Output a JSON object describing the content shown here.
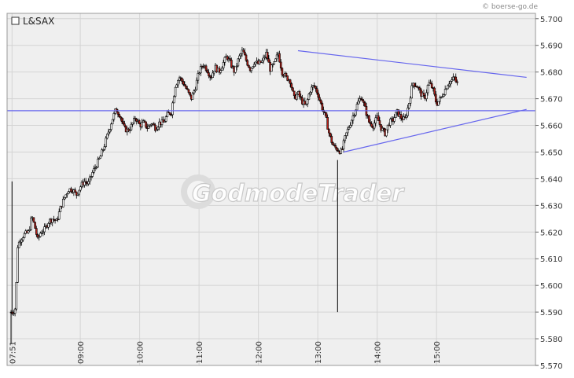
{
  "credit": "© boerse-go.de",
  "legend": {
    "label": "L&SAX"
  },
  "watermark": "GodmodeTrader",
  "colors": {
    "plot_bg": "#efefef",
    "grid": "#d4d4d4",
    "trendline": "#6666ee",
    "candle_up": "#ffffff",
    "candle_down": "#b0201a",
    "outline": "#000000"
  },
  "chart_data": {
    "type": "candlestick",
    "title": "",
    "series_name": "L&SAX",
    "ylim": [
      5570,
      5702
    ],
    "y_ticks": [
      "5.570",
      "5.580",
      "5.590",
      "5.600",
      "5.610",
      "5.620",
      "5.630",
      "5.640",
      "5.650",
      "5.660",
      "5.670",
      "5.680",
      "5.690",
      "5.700"
    ],
    "x_ticks": [
      "07:51",
      "09:00",
      "10:00",
      "11:00",
      "12:00",
      "13:00",
      "14:00",
      "15:00"
    ],
    "x_tick_minutes": [
      471,
      540,
      600,
      660,
      720,
      780,
      840,
      900
    ],
    "xlim_minutes": [
      466,
      1000
    ],
    "price_path": [
      [
        470,
        5590
      ],
      [
        472,
        5590
      ],
      [
        475,
        5592
      ],
      [
        476,
        5614
      ],
      [
        479,
        5617
      ],
      [
        483,
        5619
      ],
      [
        488,
        5620
      ],
      [
        491,
        5626
      ],
      [
        494,
        5622
      ],
      [
        497,
        5617
      ],
      [
        500,
        5620
      ],
      [
        504,
        5621
      ],
      [
        508,
        5624
      ],
      [
        512,
        5625
      ],
      [
        516,
        5624
      ],
      [
        520,
        5629
      ],
      [
        524,
        5633
      ],
      [
        528,
        5636
      ],
      [
        532,
        5636
      ],
      [
        536,
        5634
      ],
      [
        540,
        5637
      ],
      [
        544,
        5639
      ],
      [
        548,
        5638
      ],
      [
        552,
        5642
      ],
      [
        556,
        5645
      ],
      [
        560,
        5648
      ],
      [
        564,
        5652
      ],
      [
        568,
        5657
      ],
      [
        572,
        5662
      ],
      [
        576,
        5666
      ],
      [
        580,
        5664
      ],
      [
        584,
        5659
      ],
      [
        588,
        5658
      ],
      [
        592,
        5660
      ],
      [
        596,
        5663
      ],
      [
        600,
        5660
      ],
      [
        604,
        5661
      ],
      [
        608,
        5659
      ],
      [
        612,
        5661
      ],
      [
        616,
        5659
      ],
      [
        620,
        5661
      ],
      [
        624,
        5661
      ],
      [
        628,
        5664
      ],
      [
        632,
        5665
      ],
      [
        636,
        5675
      ],
      [
        640,
        5678
      ],
      [
        644,
        5676
      ],
      [
        648,
        5673
      ],
      [
        652,
        5670
      ],
      [
        656,
        5674
      ],
      [
        660,
        5680
      ],
      [
        664,
        5683
      ],
      [
        668,
        5681
      ],
      [
        672,
        5678
      ],
      [
        676,
        5682
      ],
      [
        680,
        5680
      ],
      [
        684,
        5683
      ],
      [
        688,
        5686
      ],
      [
        692,
        5683
      ],
      [
        696,
        5680
      ],
      [
        700,
        5685
      ],
      [
        704,
        5688
      ],
      [
        708,
        5684
      ],
      [
        712,
        5681
      ],
      [
        716,
        5684
      ],
      [
        720,
        5683
      ],
      [
        724,
        5684
      ],
      [
        728,
        5687
      ],
      [
        732,
        5681
      ],
      [
        736,
        5683
      ],
      [
        740,
        5687
      ],
      [
        744,
        5680
      ],
      [
        748,
        5678
      ],
      [
        752,
        5677
      ],
      [
        756,
        5670
      ],
      [
        760,
        5672
      ],
      [
        764,
        5669
      ],
      [
        768,
        5667
      ],
      [
        772,
        5673
      ],
      [
        776,
        5675
      ],
      [
        780,
        5672
      ],
      [
        784,
        5667
      ],
      [
        788,
        5663
      ],
      [
        792,
        5656
      ],
      [
        796,
        5652
      ],
      [
        800,
        5651
      ],
      [
        804,
        5650
      ],
      [
        808,
        5656
      ],
      [
        812,
        5660
      ],
      [
        816,
        5664
      ],
      [
        820,
        5668
      ],
      [
        824,
        5671
      ],
      [
        828,
        5666
      ],
      [
        832,
        5661
      ],
      [
        836,
        5660
      ],
      [
        840,
        5663
      ],
      [
        844,
        5659
      ],
      [
        848,
        5657
      ],
      [
        852,
        5661
      ],
      [
        856,
        5662
      ],
      [
        860,
        5665
      ],
      [
        864,
        5663
      ],
      [
        868,
        5662
      ],
      [
        872,
        5668
      ],
      [
        876,
        5676
      ],
      [
        880,
        5675
      ],
      [
        884,
        5672
      ],
      [
        888,
        5670
      ],
      [
        892,
        5676
      ],
      [
        896,
        5674
      ],
      [
        900,
        5668
      ],
      [
        904,
        5670
      ],
      [
        908,
        5673
      ],
      [
        912,
        5676
      ],
      [
        916,
        5677
      ],
      [
        918,
        5678
      ],
      [
        920,
        5676
      ],
      [
        922,
        5675
      ]
    ],
    "extremes": [
      {
        "t": 471,
        "price": 5639
      },
      {
        "t": 470,
        "price": 5578
      },
      {
        "t": 800,
        "price": 5647
      }
    ],
    "trendlines": [
      {
        "label": "upper",
        "t1": 760,
        "v1": 5688,
        "t2": 991,
        "v2": 5678
      },
      {
        "label": "lower",
        "t1": 806,
        "v1": 5650,
        "t2": 991,
        "v2": 5666
      },
      {
        "label": "horizontal",
        "t1": 466,
        "v1": 5665.5,
        "t2": 1000,
        "v2": 5665.5
      }
    ]
  }
}
